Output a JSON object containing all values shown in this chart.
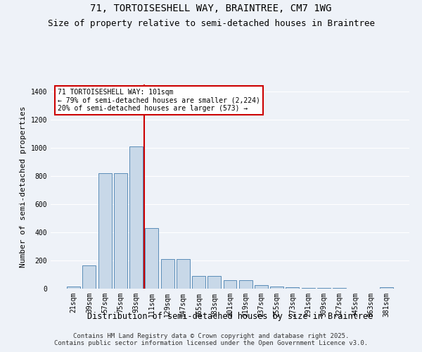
{
  "title_line1": "71, TORTOISESHELL WAY, BRAINTREE, CM7 1WG",
  "title_line2": "Size of property relative to semi-detached houses in Braintree",
  "xlabel": "Distribution of semi-detached houses by size in Braintree",
  "ylabel": "Number of semi-detached properties",
  "categories": [
    "21sqm",
    "39sqm",
    "57sqm",
    "75sqm",
    "93sqm",
    "111sqm",
    "129sqm",
    "147sqm",
    "165sqm",
    "183sqm",
    "201sqm",
    "219sqm",
    "237sqm",
    "255sqm",
    "273sqm",
    "291sqm",
    "309sqm",
    "327sqm",
    "345sqm",
    "363sqm",
    "381sqm"
  ],
  "values": [
    15,
    163,
    820,
    820,
    1010,
    430,
    210,
    210,
    90,
    90,
    60,
    60,
    25,
    15,
    10,
    5,
    5,
    3,
    2,
    2,
    10
  ],
  "bar_color": "#c8d8e8",
  "bar_edge_color": "#5b8db8",
  "vline_x_index": 5,
  "vline_color": "#cc0000",
  "annotation_title": "71 TORTOISESHELL WAY: 101sqm",
  "annotation_line2": "← 79% of semi-detached houses are smaller (2,224)",
  "annotation_line3": "20% of semi-detached houses are larger (573) →",
  "annotation_box_color": "#cc0000",
  "annotation_bg": "#ffffff",
  "ylim": [
    0,
    1450
  ],
  "yticks": [
    0,
    200,
    400,
    600,
    800,
    1000,
    1200,
    1400
  ],
  "footnote1": "Contains HM Land Registry data © Crown copyright and database right 2025.",
  "footnote2": "Contains public sector information licensed under the Open Government Licence v3.0.",
  "bg_color": "#eef2f8",
  "grid_color": "#ffffff",
  "title_fontsize": 10,
  "subtitle_fontsize": 9,
  "tick_fontsize": 7,
  "ylabel_fontsize": 8,
  "xlabel_fontsize": 8.5,
  "footnote_fontsize": 6.5
}
